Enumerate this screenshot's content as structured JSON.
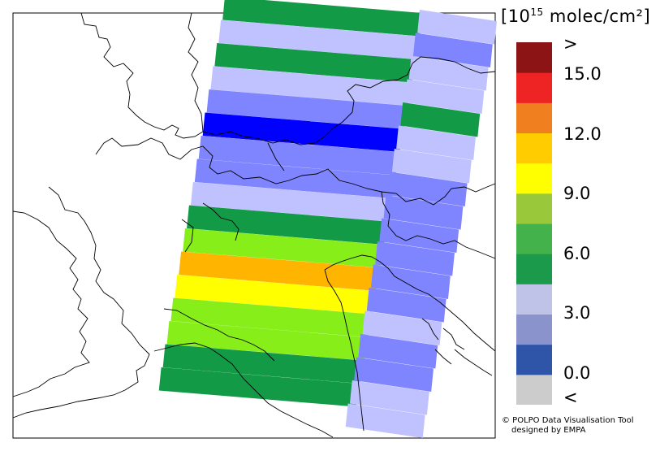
{
  "legend": {
    "unit_prefix": "[10",
    "unit_exp": "15",
    "unit_suffix": " molec/cm²]",
    "colors": [
      "#cccccc",
      "#2f55a8",
      "#8a93cc",
      "#bfc3e8",
      "#1a9a4a",
      "#44b24a",
      "#99c93a",
      "#ffff00",
      "#ffcc00",
      "#f07f20",
      "#ee2424",
      "#8c1414"
    ],
    "tick_labels": [
      ">",
      "15.0",
      "12.0",
      "9.0",
      "6.0",
      "3.0",
      "0.0",
      "<"
    ]
  },
  "credit": {
    "line1": "© POLPO Data Visualisation Tool",
    "line2": "designed by EMPA"
  },
  "palette": {
    "dark_green": "#129a46",
    "light_green": "#88ee1a",
    "orange": "#ffb400",
    "yellow": "#ffff00",
    "lavender": "#c0c2ff",
    "periwinkle": "#7f84ff",
    "blue": "#0000ff"
  },
  "swath_rows": {
    "west": [
      "dark_green",
      "lavender",
      "dark_green",
      "lavender",
      "periwinkle",
      "blue",
      "periwinkle",
      "periwinkle",
      "lavender",
      "dark_green",
      "light_green",
      "orange",
      "yellow",
      "light_green",
      "light_green",
      "dark_green",
      "dark_green"
    ],
    "east": [
      "lavender",
      "periwinkle",
      "lavender",
      "lavender",
      "dark_green",
      "lavender",
      "lavender",
      "periwinkle",
      "periwinkle",
      "periwinkle",
      "periwinkle",
      "periwinkle",
      "periwinkle",
      "lavender",
      "periwinkle",
      "periwinkle",
      "lavender",
      "lavender"
    ]
  }
}
